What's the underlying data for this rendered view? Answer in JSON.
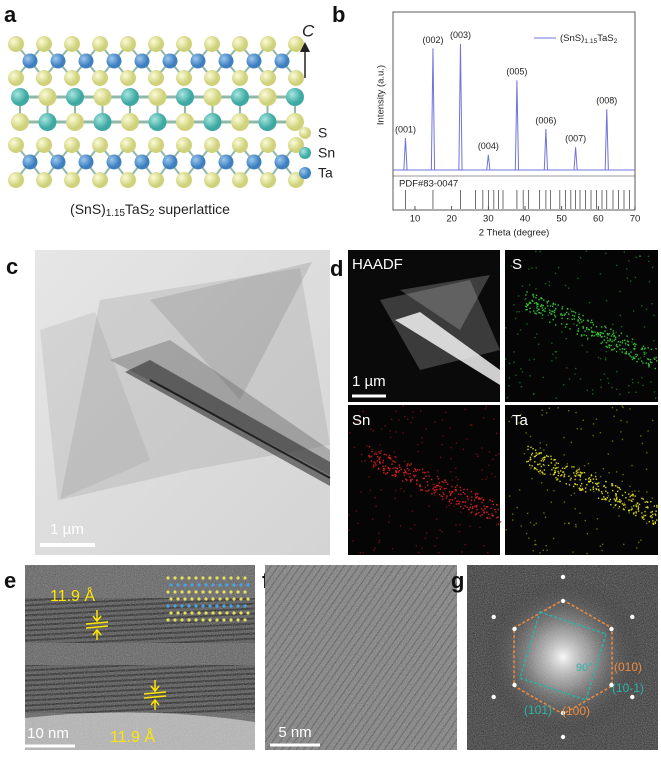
{
  "panel_a": {
    "label": "a",
    "axis": "C",
    "legend": [
      "S",
      "Sn",
      "Ta"
    ],
    "caption": "(SnS)1.15TaS2 superlattice"
  },
  "chart_data": {
    "type": "line",
    "label": "b",
    "x_label": "2 Theta (degree)",
    "y_label": "Intensity (a.u.)",
    "xlim": [
      4,
      70
    ],
    "xticks": [
      10,
      20,
      30,
      40,
      50,
      60,
      70
    ],
    "ylim": [
      0,
      100
    ],
    "series": [
      {
        "name": "(SnS)1.15TaS2",
        "color": "#6f74d8",
        "x": [
          7.4,
          14.9,
          22.4,
          30.0,
          37.8,
          45.7,
          53.8,
          62.3
        ],
        "values": [
          21,
          80,
          83,
          10,
          59,
          27,
          15,
          40
        ]
      }
    ],
    "peak_labels": [
      "(001)",
      "(002)",
      "(003)",
      "(004)",
      "(005)",
      "(006)",
      "(007)",
      "(008)"
    ],
    "reference": {
      "label": "PDF#83-0047",
      "x": [
        7.4,
        14.9,
        22.4,
        26.5,
        28.5,
        30.0,
        31.5,
        32.8,
        34.0,
        37.8,
        39.5,
        41.0,
        44.0,
        45.7,
        47.0,
        49.5,
        51.0,
        52.5,
        53.8,
        55.0,
        56.5,
        58.0,
        59.5,
        61.0,
        62.3,
        64.0,
        65.5,
        67.0,
        68.5
      ]
    }
  },
  "panel_c": {
    "label": "c",
    "scale": "1 µm"
  },
  "panel_d": {
    "label": "d",
    "maps": [
      "HAADF",
      "S",
      "Sn",
      "Ta"
    ],
    "scale": "1 µm"
  },
  "panel_e": {
    "label": "e",
    "spacing": [
      "11.9 Å",
      "11.9 Å"
    ],
    "scale": "10 nm"
  },
  "panel_f": {
    "label": "f",
    "scale": "5 nm"
  },
  "panel_g": {
    "label": "g",
    "angle": "90°",
    "indices": [
      "(010)",
      "(10-1)",
      "(101)",
      "(100)"
    ]
  }
}
